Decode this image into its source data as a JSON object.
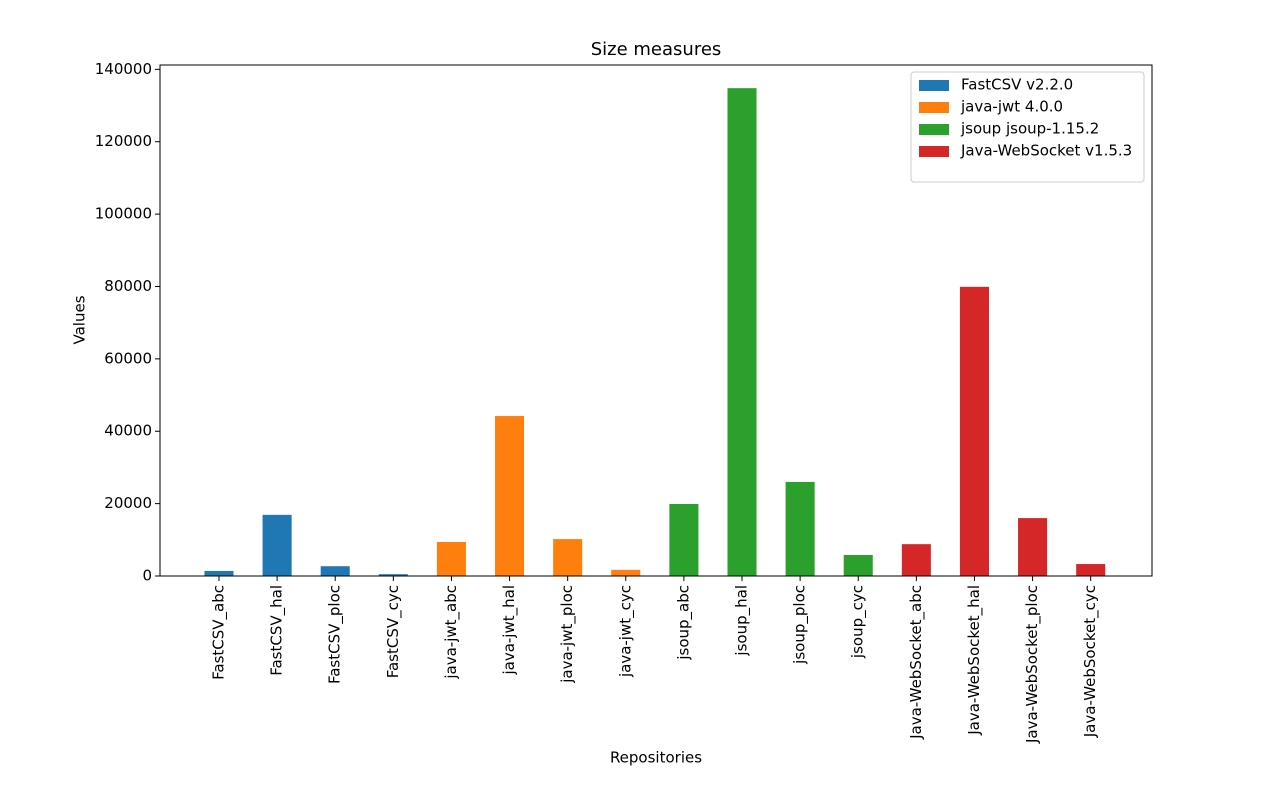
{
  "chart_data": {
    "type": "bar",
    "title": "Size measures",
    "x_label": "Repositories",
    "y_label": "Values",
    "categories": [
      "FastCSV_abc",
      "FastCSV_hal",
      "FastCSV_ploc",
      "FastCSV_cyc",
      "java-jwt_abc",
      "java-jwt_hal",
      "java-jwt_ploc",
      "java-jwt_cyc",
      "jsoup_abc",
      "jsoup_hal",
      "jsoup_ploc",
      "jsoup_cyc",
      "Java-WebSocket_abc",
      "Java-WebSocket_hal",
      "Java-WebSocket_ploc",
      "Java-WebSocket_cyc"
    ],
    "series": [
      {
        "name": "FastCSV v2.2.0",
        "color": "#1f77b4",
        "values": [
          1400,
          16900,
          2700,
          500,
          null,
          null,
          null,
          null,
          null,
          null,
          null,
          null,
          null,
          null,
          null,
          null
        ]
      },
      {
        "name": "java-jwt 4.0.0",
        "color": "#ff7f0e",
        "values": [
          null,
          null,
          null,
          null,
          9400,
          44200,
          10200,
          1700,
          null,
          null,
          null,
          null,
          null,
          null,
          null,
          null
        ]
      },
      {
        "name": "jsoup jsoup-1.15.2",
        "color": "#2ca02c",
        "values": [
          null,
          null,
          null,
          null,
          null,
          null,
          null,
          null,
          19900,
          134800,
          26000,
          5800,
          null,
          null,
          null,
          null
        ]
      },
      {
        "name": "Java-WebSocket v1.5.3",
        "color": "#d62728",
        "values": [
          null,
          null,
          null,
          null,
          null,
          null,
          null,
          null,
          null,
          null,
          null,
          null,
          8800,
          79900,
          16000,
          3300
        ]
      }
    ],
    "ylim": [
      0,
      141200
    ],
    "yticks": [
      0,
      20000,
      40000,
      60000,
      80000,
      100000,
      120000,
      140000
    ],
    "legend": "upper right"
  }
}
